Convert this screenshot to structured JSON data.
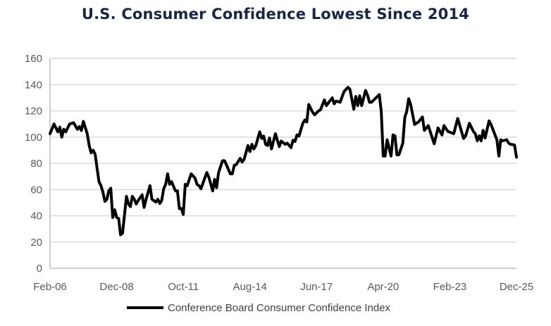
{
  "chart_data": {
    "type": "line",
    "title": "U.S. Consumer Confidence Lowest Since 2014",
    "xlabel": "",
    "ylabel": "",
    "xlim": [
      "2006-02",
      "2025-12"
    ],
    "ylim": [
      0,
      160
    ],
    "y_ticks": [
      "0",
      "20",
      "40",
      "60",
      "80",
      "100",
      "120",
      "140",
      "160"
    ],
    "x_ticks": [
      {
        "label": "Feb-06",
        "date": "2006-02"
      },
      {
        "label": "Dec-08",
        "date": "2008-12"
      },
      {
        "label": "Oct-11",
        "date": "2011-10"
      },
      {
        "label": "Aug-14",
        "date": "2014-08"
      },
      {
        "label": "Jun-17",
        "date": "2017-06"
      },
      {
        "label": "Apr-20",
        "date": "2020-04"
      },
      {
        "label": "Feb-23",
        "date": "2023-02"
      },
      {
        "label": "Dec-25",
        "date": "2025-12"
      }
    ],
    "grid": "horizontal",
    "legend_position": "bottom",
    "series": [
      {
        "name": "Conference Board Consumer Confidence Index",
        "color": "#000000",
        "points": [
          [
            "2006-02",
            102.6
          ],
          [
            "2006-04",
            110
          ],
          [
            "2006-06",
            104
          ],
          [
            "2006-07",
            107.6
          ],
          [
            "2006-08",
            100
          ],
          [
            "2006-09",
            106
          ],
          [
            "2006-10",
            104
          ],
          [
            "2006-12",
            110
          ],
          [
            "2007-02",
            111
          ],
          [
            "2007-04",
            106
          ],
          [
            "2007-05",
            108
          ],
          [
            "2007-06",
            105
          ],
          [
            "2007-07",
            112
          ],
          [
            "2007-09",
            102.6
          ],
          [
            "2007-10",
            93.6
          ],
          [
            "2007-11",
            88
          ],
          [
            "2007-12",
            90
          ],
          [
            "2008-01",
            87
          ],
          [
            "2008-03",
            66
          ],
          [
            "2008-04",
            63
          ],
          [
            "2008-05",
            58
          ],
          [
            "2008-06",
            51
          ],
          [
            "2008-07",
            52.6
          ],
          [
            "2008-08",
            59
          ],
          [
            "2008-09",
            61
          ],
          [
            "2008-10",
            38.7
          ],
          [
            "2008-11",
            44.6
          ],
          [
            "2008-12",
            38.7
          ],
          [
            "2009-01",
            38
          ],
          [
            "2009-02",
            25.5
          ],
          [
            "2009-03",
            26.8
          ],
          [
            "2009-05",
            54.8
          ],
          [
            "2009-06",
            49
          ],
          [
            "2009-07",
            47
          ],
          [
            "2009-08",
            54.8
          ],
          [
            "2009-09",
            52.6
          ],
          [
            "2009-10",
            49
          ],
          [
            "2009-11",
            51.7
          ],
          [
            "2010-01",
            56
          ],
          [
            "2010-02",
            46.4
          ],
          [
            "2010-03",
            52.6
          ],
          [
            "2010-05",
            63
          ],
          [
            "2010-06",
            52.6
          ],
          [
            "2010-08",
            50.5
          ],
          [
            "2010-09",
            52.6
          ],
          [
            "2010-10",
            49.4
          ],
          [
            "2010-11",
            51.7
          ],
          [
            "2010-12",
            60.6
          ],
          [
            "2011-01",
            64
          ],
          [
            "2011-02",
            72
          ],
          [
            "2011-03",
            64
          ],
          [
            "2011-04",
            66
          ],
          [
            "2011-06",
            59
          ],
          [
            "2011-07",
            59
          ],
          [
            "2011-08",
            45.5
          ],
          [
            "2011-09",
            45.5
          ],
          [
            "2011-10",
            41
          ],
          [
            "2011-11",
            64
          ],
          [
            "2011-12",
            63
          ],
          [
            "2012-02",
            72
          ],
          [
            "2012-04",
            68.7
          ],
          [
            "2012-05",
            64
          ],
          [
            "2012-06",
            63
          ],
          [
            "2012-07",
            60.6
          ],
          [
            "2012-10",
            73
          ],
          [
            "2012-11",
            69.6
          ],
          [
            "2013-01",
            59
          ],
          [
            "2013-02",
            67.8
          ],
          [
            "2013-03",
            61.5
          ],
          [
            "2013-04",
            73
          ],
          [
            "2013-06",
            82
          ],
          [
            "2013-07",
            82
          ],
          [
            "2013-08",
            79
          ],
          [
            "2013-10",
            72
          ],
          [
            "2013-11",
            72
          ],
          [
            "2013-12",
            78.5
          ],
          [
            "2014-01",
            79
          ],
          [
            "2014-03",
            83.8
          ],
          [
            "2014-04",
            81
          ],
          [
            "2014-05",
            83
          ],
          [
            "2014-07",
            93.6
          ],
          [
            "2014-08",
            89
          ],
          [
            "2014-09",
            94.5
          ],
          [
            "2014-10",
            91
          ],
          [
            "2014-11",
            93.6
          ],
          [
            "2015-01",
            104
          ],
          [
            "2015-02",
            99
          ],
          [
            "2015-03",
            100.8
          ],
          [
            "2015-04",
            94.5
          ],
          [
            "2015-05",
            93.6
          ],
          [
            "2015-06",
            99.4
          ],
          [
            "2015-07",
            91
          ],
          [
            "2015-09",
            102.6
          ],
          [
            "2015-11",
            92.8
          ],
          [
            "2015-12",
            97
          ],
          [
            "2016-02",
            94.5
          ],
          [
            "2016-03",
            95.4
          ],
          [
            "2016-05",
            92
          ],
          [
            "2016-06",
            97.6
          ],
          [
            "2016-07",
            96.7
          ],
          [
            "2016-08",
            101.7
          ],
          [
            "2016-09",
            100.8
          ],
          [
            "2016-11",
            110.6
          ],
          [
            "2016-12",
            113
          ],
          [
            "2017-01",
            111.5
          ],
          [
            "2017-02",
            124.9
          ],
          [
            "2017-04",
            119
          ],
          [
            "2017-05",
            117
          ],
          [
            "2017-07",
            120
          ],
          [
            "2017-08",
            120.8
          ],
          [
            "2017-10",
            128.4
          ],
          [
            "2017-11",
            124
          ],
          [
            "2018-02",
            130
          ],
          [
            "2018-03",
            125.4
          ],
          [
            "2018-04",
            127.5
          ],
          [
            "2018-06",
            126.6
          ],
          [
            "2018-08",
            134.7
          ],
          [
            "2018-10",
            138
          ],
          [
            "2018-11",
            136.5
          ],
          [
            "2019-01",
            121.3
          ],
          [
            "2019-02",
            131
          ],
          [
            "2019-03",
            124
          ],
          [
            "2019-04",
            131.5
          ],
          [
            "2019-05",
            124
          ],
          [
            "2019-07",
            135.6
          ],
          [
            "2019-08",
            132
          ],
          [
            "2019-09",
            126.6
          ],
          [
            "2019-10",
            126.6
          ],
          [
            "2020-02",
            132.4
          ],
          [
            "2020-03",
            119.5
          ],
          [
            "2020-04",
            85.6
          ],
          [
            "2020-05",
            85.6
          ],
          [
            "2020-06",
            98
          ],
          [
            "2020-08",
            85.6
          ],
          [
            "2020-09",
            101.7
          ],
          [
            "2020-10",
            101
          ],
          [
            "2020-11",
            86.5
          ],
          [
            "2020-12",
            86.5
          ],
          [
            "2021-02",
            95.4
          ],
          [
            "2021-03",
            115
          ],
          [
            "2021-04",
            119.5
          ],
          [
            "2021-05",
            129.3
          ],
          [
            "2021-06",
            124.9
          ],
          [
            "2021-08",
            109.7
          ],
          [
            "2021-10",
            111.5
          ],
          [
            "2021-12",
            115.4
          ],
          [
            "2022-01",
            105.2
          ],
          [
            "2022-03",
            108.8
          ],
          [
            "2022-06",
            95
          ],
          [
            "2022-08",
            107
          ],
          [
            "2022-10",
            101.7
          ],
          [
            "2022-11",
            108.8
          ],
          [
            "2023-01",
            104.4
          ],
          [
            "2023-04",
            102.6
          ],
          [
            "2023-06",
            114.2
          ],
          [
            "2023-09",
            99
          ],
          [
            "2023-10",
            100.8
          ],
          [
            "2023-12",
            110.6
          ],
          [
            "2024-02",
            104.4
          ],
          [
            "2024-03",
            102.6
          ],
          [
            "2024-04",
            97.2
          ],
          [
            "2024-05",
            101
          ],
          [
            "2024-06",
            97.2
          ],
          [
            "2024-07",
            105.2
          ],
          [
            "2024-08",
            99.4
          ],
          [
            "2024-10",
            112.4
          ],
          [
            "2024-11",
            109.7
          ],
          [
            "2025-02",
            98
          ],
          [
            "2025-03",
            85.6
          ],
          [
            "2025-04",
            98
          ],
          [
            "2025-05",
            97.2
          ],
          [
            "2025-07",
            98
          ],
          [
            "2025-08",
            95.4
          ],
          [
            "2025-09",
            94.5
          ],
          [
            "2025-11",
            94
          ],
          [
            "2025-12",
            84.7
          ]
        ]
      }
    ]
  }
}
